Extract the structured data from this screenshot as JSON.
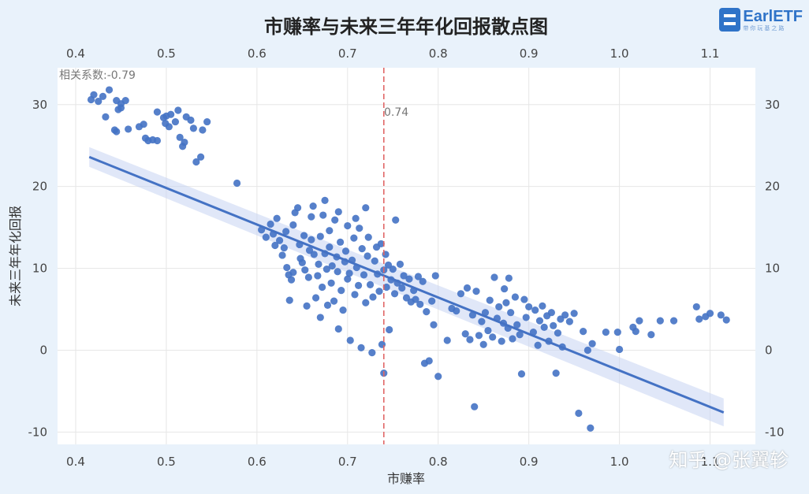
{
  "chart_data": {
    "type": "scatter",
    "title": "市赚率与未来三年年化回报散点图",
    "xlabel": "市赚率",
    "ylabel": "未来三年年化回报",
    "xlim": [
      0.38,
      1.15
    ],
    "ylim": [
      -11.5,
      34.5
    ],
    "x_ticks": [
      "0.4",
      "0.5",
      "0.6",
      "0.7",
      "0.8",
      "0.9",
      "1.0",
      "1.1"
    ],
    "y_ticks": [
      "-10",
      "0",
      "10",
      "20",
      "30"
    ],
    "grid": true,
    "correlation_label": "相关系数:-0.79",
    "reference_line": {
      "x": 0.74,
      "label": "0.74",
      "color": "#e06666"
    },
    "regression": {
      "x_start": 0.415,
      "x_end": 1.115,
      "y_start": 23.6,
      "y_end": -7.6
    },
    "confidence_band": {
      "upper_start": 24.8,
      "lower_start": 22.4,
      "upper_end": -5.9,
      "lower_end": -9.3
    },
    "point_color": "#4472c4",
    "line_color": "#4472c4",
    "band_color": "#c7d3f2",
    "points": [
      [
        0.417,
        30.6
      ],
      [
        0.42,
        31.2
      ],
      [
        0.425,
        30.4
      ],
      [
        0.43,
        31.0
      ],
      [
        0.437,
        31.8
      ],
      [
        0.433,
        28.5
      ],
      [
        0.443,
        26.9
      ],
      [
        0.445,
        26.7
      ],
      [
        0.447,
        29.4
      ],
      [
        0.45,
        30.1
      ],
      [
        0.445,
        30.5
      ],
      [
        0.455,
        30.5
      ],
      [
        0.45,
        29.6
      ],
      [
        0.458,
        27.0
      ],
      [
        0.47,
        27.3
      ],
      [
        0.475,
        27.6
      ],
      [
        0.477,
        25.9
      ],
      [
        0.48,
        25.6
      ],
      [
        0.485,
        25.7
      ],
      [
        0.49,
        25.6
      ],
      [
        0.49,
        29.1
      ],
      [
        0.497,
        28.4
      ],
      [
        0.499,
        27.7
      ],
      [
        0.5,
        28.6
      ],
      [
        0.503,
        27.3
      ],
      [
        0.505,
        28.8
      ],
      [
        0.51,
        27.9
      ],
      [
        0.515,
        26.0
      ],
      [
        0.518,
        24.9
      ],
      [
        0.52,
        25.4
      ],
      [
        0.513,
        29.3
      ],
      [
        0.522,
        28.5
      ],
      [
        0.527,
        28.1
      ],
      [
        0.53,
        27.1
      ],
      [
        0.533,
        23.0
      ],
      [
        0.538,
        23.6
      ],
      [
        0.54,
        26.9
      ],
      [
        0.545,
        27.9
      ],
      [
        0.578,
        20.4
      ],
      [
        0.605,
        14.7
      ],
      [
        0.61,
        13.8
      ],
      [
        0.615,
        15.4
      ],
      [
        0.618,
        14.2
      ],
      [
        0.62,
        12.8
      ],
      [
        0.622,
        16.1
      ],
      [
        0.625,
        13.4
      ],
      [
        0.628,
        11.6
      ],
      [
        0.63,
        12.5
      ],
      [
        0.632,
        14.5
      ],
      [
        0.633,
        10.1
      ],
      [
        0.635,
        9.2
      ],
      [
        0.636,
        6.1
      ],
      [
        0.638,
        8.6
      ],
      [
        0.64,
        9.5
      ],
      [
        0.64,
        15.3
      ],
      [
        0.642,
        16.8
      ],
      [
        0.645,
        17.4
      ],
      [
        0.647,
        12.9
      ],
      [
        0.648,
        11.2
      ],
      [
        0.65,
        10.7
      ],
      [
        0.652,
        14.0
      ],
      [
        0.653,
        9.8
      ],
      [
        0.655,
        5.4
      ],
      [
        0.657,
        8.9
      ],
      [
        0.658,
        12.2
      ],
      [
        0.66,
        13.5
      ],
      [
        0.66,
        16.3
      ],
      [
        0.662,
        17.6
      ],
      [
        0.663,
        11.7
      ],
      [
        0.665,
        6.4
      ],
      [
        0.667,
        9.1
      ],
      [
        0.668,
        10.5
      ],
      [
        0.67,
        13.9
      ],
      [
        0.67,
        4.0
      ],
      [
        0.672,
        7.7
      ],
      [
        0.673,
        16.5
      ],
      [
        0.675,
        18.3
      ],
      [
        0.675,
        11.8
      ],
      [
        0.677,
        9.9
      ],
      [
        0.678,
        5.5
      ],
      [
        0.68,
        12.6
      ],
      [
        0.68,
        14.6
      ],
      [
        0.682,
        8.2
      ],
      [
        0.683,
        10.3
      ],
      [
        0.685,
        6.0
      ],
      [
        0.686,
        15.9
      ],
      [
        0.688,
        11.4
      ],
      [
        0.689,
        9.6
      ],
      [
        0.69,
        16.9
      ],
      [
        0.69,
        2.6
      ],
      [
        0.692,
        13.2
      ],
      [
        0.693,
        7.3
      ],
      [
        0.695,
        4.9
      ],
      [
        0.697,
        10.8
      ],
      [
        0.698,
        12.1
      ],
      [
        0.7,
        8.7
      ],
      [
        0.7,
        15.2
      ],
      [
        0.702,
        9.4
      ],
      [
        0.703,
        1.2
      ],
      [
        0.705,
        11.0
      ],
      [
        0.707,
        13.7
      ],
      [
        0.708,
        6.8
      ],
      [
        0.709,
        16.1
      ],
      [
        0.71,
        10.1
      ],
      [
        0.712,
        7.9
      ],
      [
        0.713,
        14.9
      ],
      [
        0.715,
        0.3
      ],
      [
        0.716,
        12.4
      ],
      [
        0.718,
        9.2
      ],
      [
        0.72,
        17.4
      ],
      [
        0.72,
        5.8
      ],
      [
        0.722,
        11.5
      ],
      [
        0.723,
        13.8
      ],
      [
        0.725,
        8.0
      ],
      [
        0.727,
        -0.3
      ],
      [
        0.728,
        6.5
      ],
      [
        0.73,
        10.9
      ],
      [
        0.732,
        12.6
      ],
      [
        0.733,
        9.3
      ],
      [
        0.735,
        7.2
      ],
      [
        0.737,
        13.0
      ],
      [
        0.738,
        0.7
      ],
      [
        0.74,
        -2.8
      ],
      [
        0.74,
        9.8
      ],
      [
        0.742,
        11.7
      ],
      [
        0.743,
        7.7
      ],
      [
        0.745,
        10.4
      ],
      [
        0.746,
        2.5
      ],
      [
        0.748,
        8.6
      ],
      [
        0.75,
        9.9
      ],
      [
        0.752,
        6.9
      ],
      [
        0.753,
        15.9
      ],
      [
        0.755,
        8.2
      ],
      [
        0.758,
        10.5
      ],
      [
        0.76,
        7.6
      ],
      [
        0.762,
        9.1
      ],
      [
        0.765,
        6.4
      ],
      [
        0.768,
        8.7
      ],
      [
        0.77,
        5.9
      ],
      [
        0.773,
        7.3
      ],
      [
        0.775,
        6.2
      ],
      [
        0.778,
        9.0
      ],
      [
        0.78,
        5.6
      ],
      [
        0.783,
        8.4
      ],
      [
        0.785,
        -1.6
      ],
      [
        0.787,
        4.7
      ],
      [
        0.79,
        -1.3
      ],
      [
        0.793,
        6.0
      ],
      [
        0.795,
        3.1
      ],
      [
        0.797,
        9.1
      ],
      [
        0.8,
        -3.2
      ],
      [
        0.81,
        1.2
      ],
      [
        0.815,
        5.1
      ],
      [
        0.82,
        4.8
      ],
      [
        0.825,
        6.9
      ],
      [
        0.83,
        2.0
      ],
      [
        0.832,
        7.6
      ],
      [
        0.835,
        1.3
      ],
      [
        0.838,
        4.3
      ],
      [
        0.84,
        -6.9
      ],
      [
        0.842,
        7.2
      ],
      [
        0.845,
        1.8
      ],
      [
        0.848,
        3.5
      ],
      [
        0.85,
        0.7
      ],
      [
        0.852,
        4.6
      ],
      [
        0.855,
        2.4
      ],
      [
        0.857,
        6.1
      ],
      [
        0.86,
        1.6
      ],
      [
        0.862,
        8.9
      ],
      [
        0.865,
        3.9
      ],
      [
        0.867,
        5.3
      ],
      [
        0.87,
        1.1
      ],
      [
        0.872,
        3.3
      ],
      [
        0.873,
        7.5
      ],
      [
        0.875,
        5.8
      ],
      [
        0.877,
        2.7
      ],
      [
        0.878,
        8.8
      ],
      [
        0.88,
        4.6
      ],
      [
        0.882,
        1.4
      ],
      [
        0.885,
        6.5
      ],
      [
        0.887,
        3.1
      ],
      [
        0.89,
        1.9
      ],
      [
        0.892,
        -2.9
      ],
      [
        0.895,
        6.2
      ],
      [
        0.897,
        4.0
      ],
      [
        0.9,
        5.3
      ],
      [
        0.905,
        2.2
      ],
      [
        0.907,
        4.9
      ],
      [
        0.91,
        0.6
      ],
      [
        0.912,
        3.6
      ],
      [
        0.915,
        5.4
      ],
      [
        0.917,
        2.8
      ],
      [
        0.92,
        4.2
      ],
      [
        0.922,
        1.1
      ],
      [
        0.925,
        4.6
      ],
      [
        0.927,
        3.0
      ],
      [
        0.93,
        -2.8
      ],
      [
        0.932,
        2.1
      ],
      [
        0.935,
        3.8
      ],
      [
        0.937,
        0.4
      ],
      [
        0.94,
        4.3
      ],
      [
        0.945,
        3.5
      ],
      [
        0.95,
        4.5
      ],
      [
        0.955,
        -7.7
      ],
      [
        0.96,
        2.3
      ],
      [
        0.965,
        0.0
      ],
      [
        0.968,
        -9.5
      ],
      [
        0.97,
        0.8
      ],
      [
        0.985,
        2.2
      ],
      [
        0.998,
        2.2
      ],
      [
        1.0,
        0.1
      ],
      [
        1.015,
        2.8
      ],
      [
        1.018,
        2.3
      ],
      [
        1.022,
        3.6
      ],
      [
        1.035,
        1.9
      ],
      [
        1.045,
        3.6
      ],
      [
        1.06,
        3.6
      ],
      [
        1.085,
        5.3
      ],
      [
        1.088,
        3.8
      ],
      [
        1.095,
        4.1
      ],
      [
        1.1,
        4.5
      ],
      [
        1.112,
        4.3
      ],
      [
        1.118,
        3.7
      ]
    ]
  },
  "logo": {
    "name": "EarlETF",
    "sub": "带你玩基之路"
  },
  "watermark": "知乎 @张翼轸"
}
